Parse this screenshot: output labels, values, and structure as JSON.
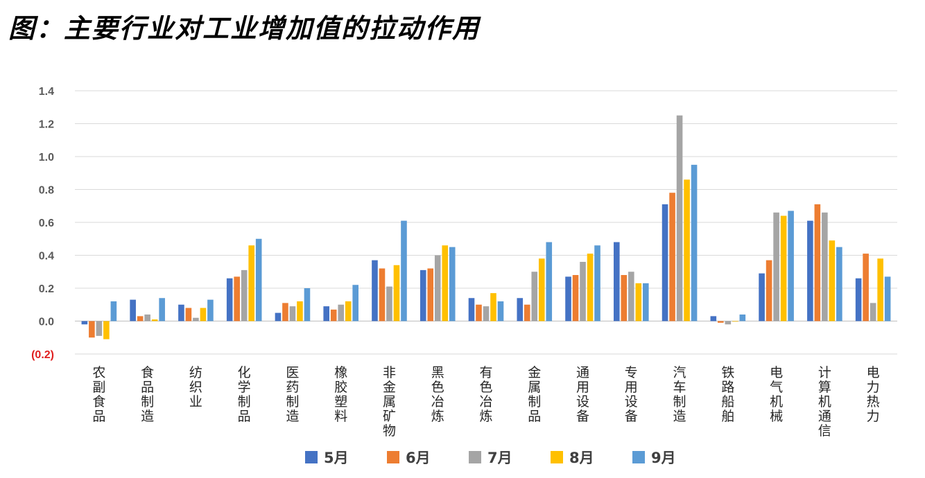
{
  "title": "图：主要行业对工业增加值的拉动作用",
  "chart_data": {
    "type": "bar",
    "title": "图：主要行业对工业增加值的拉动作用",
    "xlabel": "",
    "ylabel": "",
    "ylim": [
      -0.2,
      1.4
    ],
    "yticks": [
      1.4,
      1.2,
      1.0,
      0.8,
      0.6,
      0.4,
      0.2,
      0.0,
      -0.2
    ],
    "ytick_labels": [
      "1.4",
      "1.2",
      "1.0",
      "0.8",
      "0.6",
      "0.4",
      "0.2",
      "0.0",
      "(0.2)"
    ],
    "grid": true,
    "legend_position": "bottom",
    "categories": [
      "农副食品",
      "食品制造",
      "纺织业",
      "化学制品",
      "医药制造",
      "橡胶塑料",
      "非金属矿物",
      "黑色冶炼",
      "有色冶炼",
      "金属制品",
      "通用设备",
      "专用设备",
      "汽车制造",
      "铁路船舶",
      "电气机械",
      "计算机通信",
      "电力热力"
    ],
    "series": [
      {
        "name": "5月",
        "color": "#4472c4",
        "values": [
          -0.02,
          0.13,
          0.1,
          0.26,
          0.05,
          0.09,
          0.37,
          0.31,
          0.14,
          0.14,
          0.27,
          0.48,
          0.71,
          0.03,
          0.29,
          0.61,
          0.26
        ]
      },
      {
        "name": "6月",
        "color": "#ed7d31",
        "values": [
          -0.1,
          0.03,
          0.08,
          0.27,
          0.11,
          0.07,
          0.32,
          0.32,
          0.1,
          0.1,
          0.28,
          0.28,
          0.78,
          -0.01,
          0.37,
          0.71,
          0.41
        ]
      },
      {
        "name": "7月",
        "color": "#a5a5a5",
        "values": [
          -0.09,
          0.04,
          0.02,
          0.31,
          0.09,
          0.1,
          0.21,
          0.4,
          0.09,
          0.3,
          0.36,
          0.3,
          1.25,
          -0.02,
          0.66,
          0.66,
          0.11
        ]
      },
      {
        "name": "8月",
        "color": "#ffc000",
        "values": [
          -0.11,
          0.01,
          0.08,
          0.46,
          0.12,
          0.12,
          0.34,
          0.46,
          0.17,
          0.38,
          0.41,
          0.23,
          0.86,
          0.0,
          0.64,
          0.49,
          0.38
        ]
      },
      {
        "name": "9月",
        "color": "#5b9bd5",
        "values": [
          0.12,
          0.14,
          0.13,
          0.5,
          0.2,
          0.22,
          0.61,
          0.45,
          0.12,
          0.48,
          0.46,
          0.23,
          0.95,
          0.04,
          0.67,
          0.45,
          0.27
        ]
      }
    ]
  }
}
